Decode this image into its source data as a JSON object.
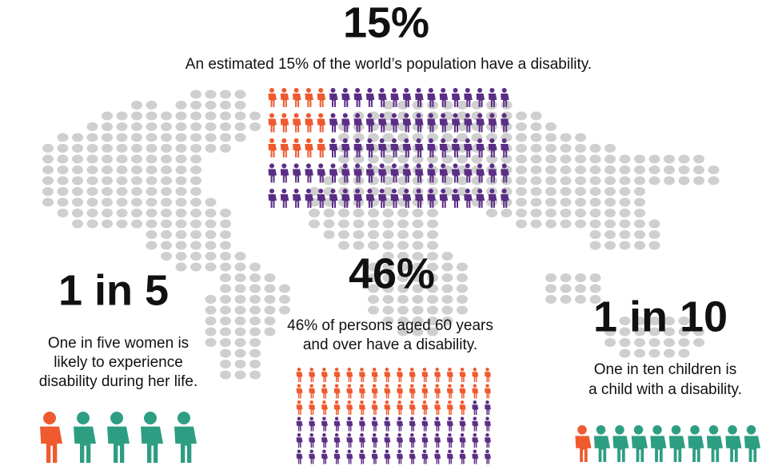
{
  "top": {
    "headline": "15%",
    "lines": [
      "An estimated 15% of the world’s population have a disability."
    ]
  },
  "middle": {
    "headline": "46%",
    "lines": [
      "46% of persons aged 60 years",
      "and over have a disability."
    ]
  },
  "left": {
    "headline": "1 in 5",
    "lines": [
      "One in five women is",
      "likely to experience",
      "disability during her life."
    ]
  },
  "right": {
    "headline": "1 in 10",
    "lines": [
      "One in ten children is",
      "a child with a disability."
    ]
  }
}
